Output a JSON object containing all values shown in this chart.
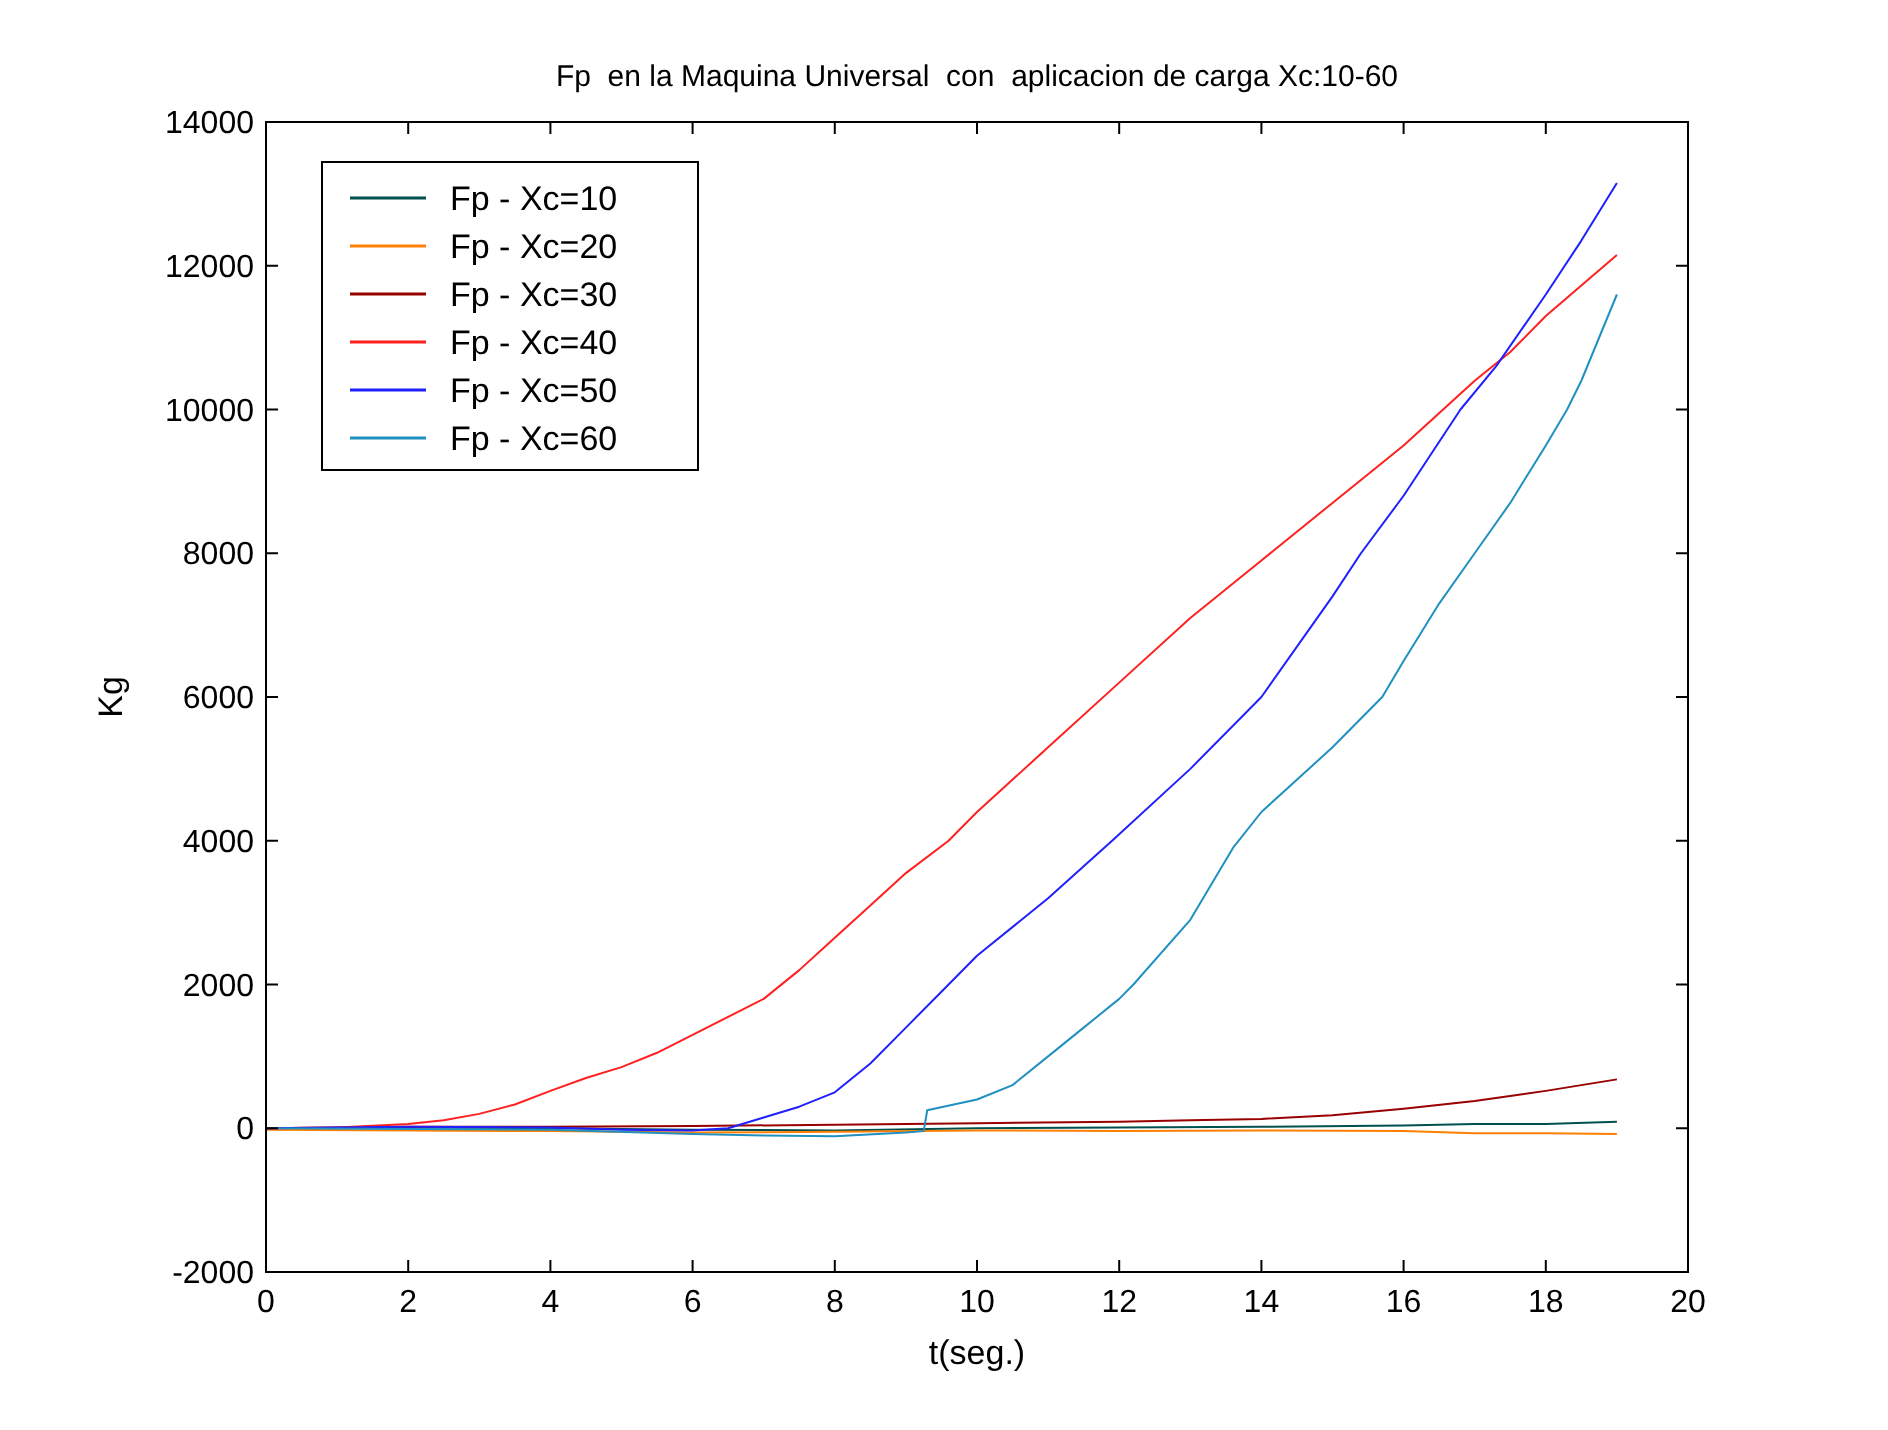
{
  "chart_data": {
    "type": "line",
    "title": "Fp  en la Maquina Universal  con  aplicacion de carga Xc:10-60",
    "xlabel": "t(seg.)",
    "ylabel": "Kg",
    "xlim": [
      0,
      20
    ],
    "xticks": [
      0,
      2,
      4,
      6,
      8,
      10,
      12,
      14,
      16,
      18,
      20
    ],
    "ylim": [
      -2000,
      14000
    ],
    "yticks": [
      -2000,
      0,
      2000,
      4000,
      6000,
      8000,
      10000,
      12000,
      14000
    ],
    "grid": false,
    "legend": "top left",
    "line_style": "solid",
    "series": [
      {
        "name": "Fp - Xc=10",
        "color": "#005050",
        "x": [
          0,
          2,
          4,
          6,
          8,
          10,
          12,
          14,
          16,
          17,
          18,
          19
        ],
        "values": [
          0,
          10,
          0,
          -20,
          -30,
          0,
          10,
          20,
          40,
          60,
          60,
          90
        ]
      },
      {
        "name": "Fp - Xc=20",
        "color": "#ff8000",
        "x": [
          0,
          2,
          4,
          6,
          8,
          10,
          12,
          14,
          16,
          17,
          18,
          19
        ],
        "values": [
          -20,
          -30,
          -40,
          -60,
          -50,
          -30,
          -40,
          -30,
          -40,
          -70,
          -70,
          -80
        ]
      },
      {
        "name": "Fp - Xc=30",
        "color": "#990000",
        "x": [
          0,
          2,
          4,
          6,
          8,
          10,
          12,
          13,
          14,
          15,
          16,
          17,
          18,
          19
        ],
        "values": [
          0,
          20,
          20,
          30,
          50,
          70,
          90,
          110,
          130,
          180,
          270,
          380,
          520,
          680
        ]
      },
      {
        "name": "Fp - Xc=40",
        "color": "#ff2020",
        "x": [
          0,
          1,
          2,
          2.5,
          3,
          3.5,
          4,
          4.5,
          5,
          5.5,
          6,
          6.5,
          7,
          7.5,
          8,
          8.5,
          9,
          9.6,
          10,
          11,
          12,
          13,
          14,
          15,
          16,
          17,
          17.5,
          18,
          19
        ],
        "values": [
          0,
          10,
          60,
          110,
          200,
          330,
          520,
          700,
          850,
          1050,
          1300,
          1550,
          1800,
          2200,
          2650,
          3100,
          3550,
          4000,
          4400,
          5300,
          6200,
          7100,
          7900,
          8700,
          9500,
          10400,
          10800,
          11300,
          12150
        ]
      },
      {
        "name": "Fp - Xc=50",
        "color": "#2020ff",
        "x": [
          0,
          2,
          4,
          5,
          6,
          6.5,
          7,
          7.5,
          8,
          8.5,
          9,
          9.5,
          10,
          11,
          11.9,
          13,
          14,
          15,
          15.4,
          16,
          16.8,
          17.3,
          18,
          18.5,
          19
        ],
        "values": [
          0,
          20,
          10,
          -20,
          -30,
          0,
          150,
          300,
          500,
          900,
          1400,
          1900,
          2400,
          3200,
          4000,
          5000,
          6000,
          7400,
          8000,
          8800,
          10000,
          10600,
          11600,
          12350,
          13150
        ]
      },
      {
        "name": "Fp - Xc=60",
        "color": "#2090c0",
        "x": [
          0,
          2,
          4,
          6,
          7,
          8,
          9,
          9.25,
          9.3,
          10,
          10.5,
          11,
          11.5,
          12,
          12.2,
          13,
          13.6,
          14,
          15,
          15.7,
          16,
          16.5,
          17,
          17.5,
          18,
          18.3,
          18.5,
          19
        ],
        "values": [
          0,
          -10,
          -20,
          -80,
          -100,
          -110,
          -60,
          -40,
          250,
          400,
          600,
          1000,
          1400,
          1800,
          2000,
          2900,
          3900,
          4400,
          5300,
          6000,
          6500,
          7300,
          8000,
          8700,
          9500,
          10000,
          10400,
          11600
        ]
      }
    ]
  }
}
